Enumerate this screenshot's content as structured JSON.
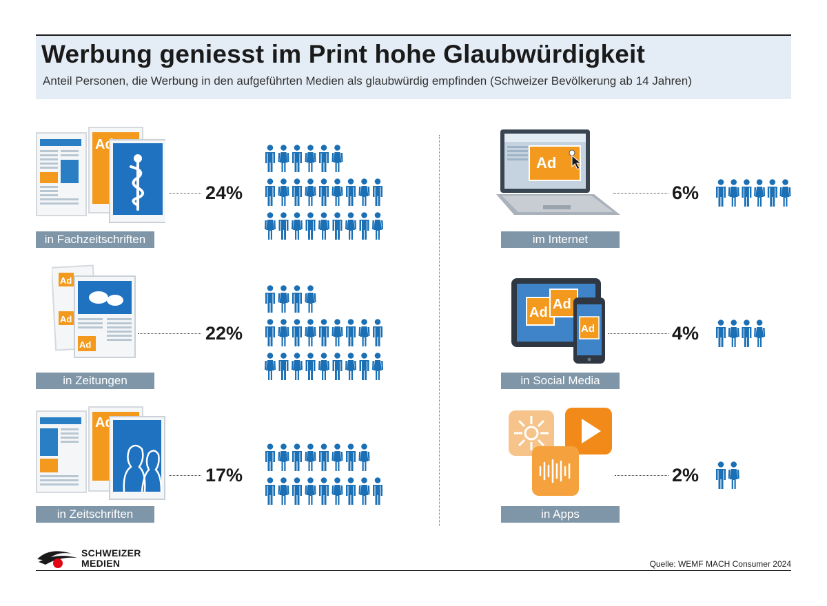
{
  "header": {
    "title": "Werbung geniesst im Print hohe Glaubwürdigkeit",
    "subtitle": "Anteil Personen, die Werbung in den aufgeführten Medien als glaubwürdig empfinden (Schweizer Bevölkerung ab 14 Jahren)"
  },
  "colors": {
    "person": "#1a6fb5",
    "label_bg": "#7f96a8",
    "header_bg": "#e4edf6",
    "accent_orange": "#f39a1e",
    "accent_blue": "#1f72c0"
  },
  "icons": {
    "ad_text": "Ad",
    "fachzeitschriften": "medical-journal-icon",
    "zeitungen": "newspaper-icon",
    "zeitschriften": "magazine-icon",
    "internet": "laptop-ad-icon",
    "social_media": "tablet-phone-ad-icon",
    "apps": "app-icons-icon",
    "person": "person-icon"
  },
  "chart_data": {
    "type": "pictogram",
    "unit": "%",
    "items": [
      {
        "label": "in Fachzeitschriften",
        "value": 24,
        "value_text": "24%"
      },
      {
        "label": "in Zeitungen",
        "value": 22,
        "value_text": "22%"
      },
      {
        "label": "in Zeitschriften",
        "value": 17,
        "value_text": "17%"
      },
      {
        "label": "im Internet",
        "value": 6,
        "value_text": "6%"
      },
      {
        "label": "in Social Media",
        "value": 4,
        "value_text": "4%"
      },
      {
        "label": "in Apps",
        "value": 2,
        "value_text": "2%"
      }
    ]
  },
  "footer": {
    "logo_line1": "SCHWEIZER",
    "logo_line2": "MEDIEN",
    "source": "Quelle: WEMF MACH Consumer 2024"
  }
}
